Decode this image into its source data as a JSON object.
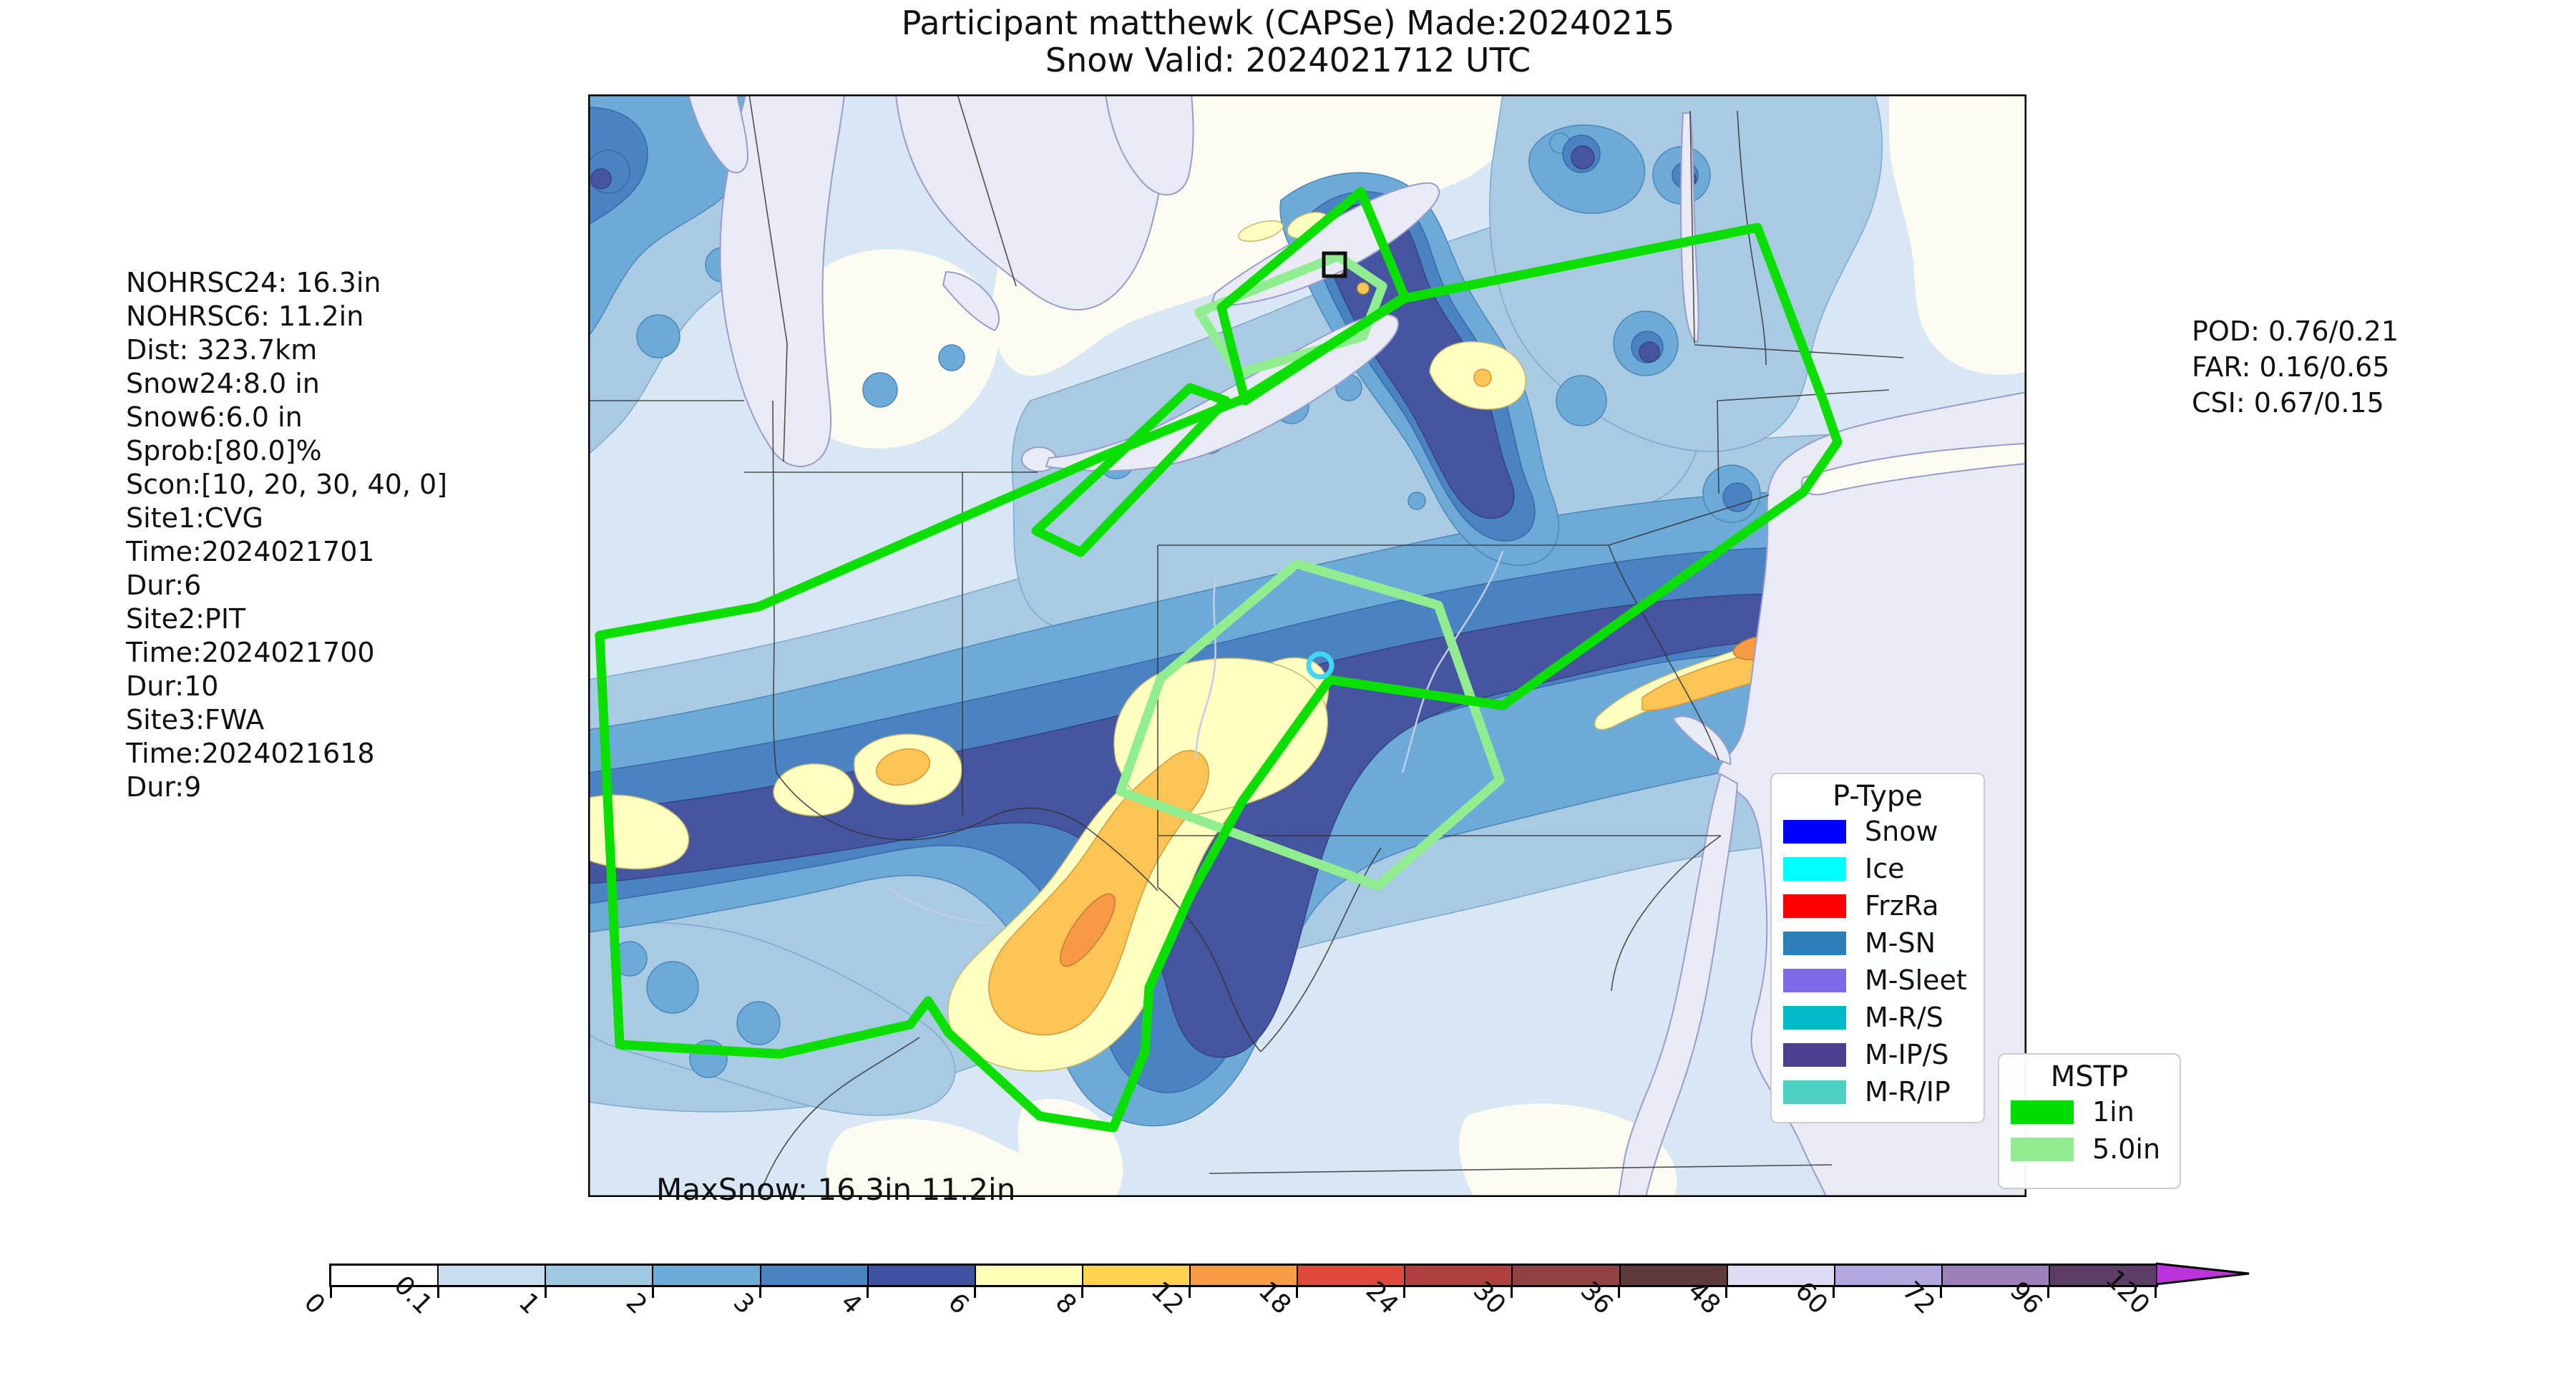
{
  "title": {
    "line1": "Participant matthewk (CAPSe) Made:20240215",
    "line2": "Snow Valid: 2024021712 UTC"
  },
  "left_stats": {
    "lines": [
      "NOHRSC24: 16.3in",
      "NOHRSC6: 11.2in",
      "Dist: 323.7km",
      "Snow24:8.0 in",
      "Snow6:6.0 in",
      "Sprob:[80.0]%",
      "Scon:[10, 20, 30, 40, 0]",
      "Site1:CVG",
      "Time:2024021701",
      "Dur:6",
      "Site2:PIT",
      "Time:2024021700",
      "Dur:10",
      "Site3:FWA",
      "Time:2024021618",
      "Dur:9"
    ]
  },
  "right_stats": {
    "lines": [
      "POD: 0.76/0.21",
      "FAR: 0.16/0.65",
      "CSI: 0.67/0.15"
    ]
  },
  "map": {
    "maxsnow_label": "MaxSnow: 16.3in 11.2in",
    "markers": {
      "site_square": "black-square-site-marker",
      "obs_circle": "cyan-circle-marker",
      "small_dot": "orange-dot-marker"
    }
  },
  "legend_ptype": {
    "title": "P-Type",
    "items": [
      {
        "label": "Snow",
        "color": "#0000FF"
      },
      {
        "label": "Ice",
        "color": "#00FFFF"
      },
      {
        "label": "FrzRa",
        "color": "#FF0000"
      },
      {
        "label": "M-SN",
        "color": "#2E7EB8"
      },
      {
        "label": "M-Sleet",
        "color": "#7C6AEA"
      },
      {
        "label": "M-R/S",
        "color": "#00B9C9"
      },
      {
        "label": "M-IP/S",
        "color": "#4A3E8F"
      },
      {
        "label": "M-R/IP",
        "color": "#4ED0C2"
      }
    ]
  },
  "legend_mstp": {
    "title": "MSTP",
    "items": [
      {
        "label": "1in",
        "color": "#00DC00"
      },
      {
        "label": "5.0in",
        "color": "#90EE90"
      }
    ]
  },
  "colorbar": {
    "tick_labels": [
      "0",
      "0.1",
      "1",
      "2",
      "3",
      "4",
      "6",
      "8",
      "12",
      "18",
      "24",
      "30",
      "36",
      "48",
      "60",
      "72",
      "96",
      "120"
    ],
    "segment_colors": [
      "#FFFFFF",
      "#CADDEF",
      "#9EC8E2",
      "#6CAAD8",
      "#4A82C2",
      "#4052A4",
      "#FFFFB8",
      "#FFD24F",
      "#F99C45",
      "#E04A3C",
      "#B04040",
      "#8F4242",
      "#5E3A3C",
      "#DCDCF5",
      "#B2A7DE",
      "#9C80BA",
      "#5C3D66"
    ],
    "arrow_color": "#BE32DC"
  },
  "chart_data": {
    "type": "heatmap",
    "title": "Participant matthewk (CAPSe) Made:20240215 / Snow Valid: 2024021712 UTC",
    "field": "Snowfall analysis (inches) over the northeastern United States with MSTP forecast contours",
    "colorbar_levels": [
      0,
      0.1,
      1,
      2,
      3,
      4,
      6,
      8,
      12,
      18,
      24,
      30,
      36,
      48,
      60,
      72,
      96,
      120
    ],
    "colorbar_units": "in",
    "legend": {
      "P-Type": [
        "Snow",
        "Ice",
        "FrzRa",
        "M-SN",
        "M-Sleet",
        "M-R/S",
        "M-IP/S",
        "M-R/IP"
      ],
      "MSTP": [
        "1in",
        "5.0in"
      ]
    },
    "stats": {
      "NOHRSC24_in": 16.3,
      "NOHRSC6_in": 11.2,
      "Dist_km": 323.7,
      "Snow24_in": 8.0,
      "Snow6_in": 6.0,
      "Sprob_pct": [
        80.0
      ],
      "Scon": [
        10,
        20,
        30,
        40,
        0
      ],
      "sites": [
        {
          "site": "CVG",
          "time": "2024021701",
          "dur": 6
        },
        {
          "site": "PIT",
          "time": "2024021700",
          "dur": 10
        },
        {
          "site": "FWA",
          "time": "2024021618",
          "dur": 9
        }
      ],
      "POD": [
        0.76,
        0.21
      ],
      "FAR": [
        0.16,
        0.65
      ],
      "CSI": [
        0.67,
        0.15
      ],
      "MaxSnow_in": [
        16.3,
        11.2
      ]
    }
  }
}
